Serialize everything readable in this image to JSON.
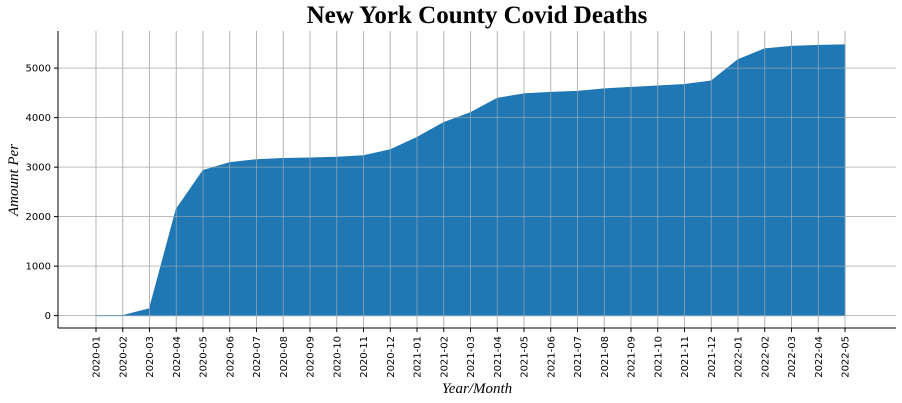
{
  "chart_data": {
    "type": "area",
    "title": "New York County Covid Deaths",
    "xlabel": "Year/Month",
    "ylabel": "Amount Per",
    "grid": true,
    "color": "#1f77b4",
    "ylim": [
      -250,
      5750
    ],
    "yticks": [
      0,
      1000,
      2000,
      3000,
      4000,
      5000
    ],
    "categories": [
      "2020-01",
      "2020-02",
      "2020-03",
      "2020-04",
      "2020-05",
      "2020-06",
      "2020-07",
      "2020-08",
      "2020-09",
      "2020-10",
      "2020-11",
      "2020-12",
      "2021-01",
      "2021-02",
      "2021-03",
      "2021-04",
      "2021-05",
      "2021-06",
      "2021-07",
      "2021-08",
      "2021-09",
      "2021-10",
      "2021-11",
      "2021-12",
      "2022-01",
      "2022-02",
      "2022-03",
      "2022-04",
      "2022-05"
    ],
    "values": [
      0,
      0,
      140,
      2150,
      2930,
      3090,
      3150,
      3175,
      3185,
      3200,
      3230,
      3350,
      3600,
      3900,
      4100,
      4390,
      4480,
      4510,
      4530,
      4580,
      4610,
      4640,
      4670,
      4740,
      5170,
      5390,
      5440,
      5460,
      5470
    ]
  }
}
